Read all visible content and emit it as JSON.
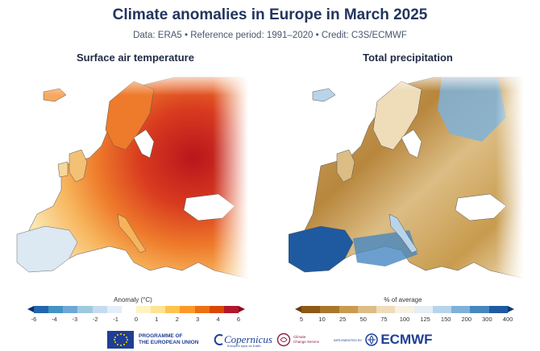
{
  "header": {
    "title": "Climate anomalies in Europe in March 2025",
    "subtitle": "Data: ERA5 • Reference period: 1991–2020 • Credit: C3S/ECMWF"
  },
  "panels": {
    "left": {
      "title": "Surface air temperature",
      "legend_title": "Anomaly (°C)",
      "ticks": [
        "-6",
        "-4",
        "-3",
        "-2",
        "-1",
        "0",
        "1",
        "2",
        "3",
        "4",
        "6"
      ],
      "colors": [
        "#08306b",
        "#2166ac",
        "#4393c3",
        "#6fa8d6",
        "#9ecae1",
        "#c6dbef",
        "#e3eef8",
        "#ffffff",
        "#fff3c4",
        "#fee391",
        "#fec44f",
        "#fe9929",
        "#ec7014",
        "#d94801",
        "#b2182b",
        "#8b0a1d"
      ]
    },
    "right": {
      "title": "Total precipitation",
      "legend_title": "% of average",
      "ticks": [
        "5",
        "10",
        "25",
        "50",
        "75",
        "100",
        "125",
        "150",
        "200",
        "300",
        "400"
      ],
      "colors": [
        "#6b3d0a",
        "#8c5a14",
        "#a9772a",
        "#c89b4e",
        "#dcbd84",
        "#efdcb8",
        "#f7f0e3",
        "#e4eef6",
        "#b8d4ea",
        "#7fb1d8",
        "#4787c0",
        "#1f5aa0",
        "#0b3a78"
      ]
    }
  },
  "logos": {
    "eu": {
      "icon": "eu-flag-icon",
      "line1": "PROGRAMME OF",
      "line2": "THE EUROPEAN UNION"
    },
    "copernicus": {
      "icon": "copernicus-logo-icon",
      "text": "Copernicus",
      "sub": "Europe's eyes on Earth"
    },
    "c3s": {
      "icon": "c3s-logo-icon",
      "line1": "Climate",
      "line2": "Change Service"
    },
    "ecmwf": {
      "icon": "ecmwf-logo-icon",
      "small": "IMPLEMENTED BY",
      "text": "ECMWF"
    }
  }
}
